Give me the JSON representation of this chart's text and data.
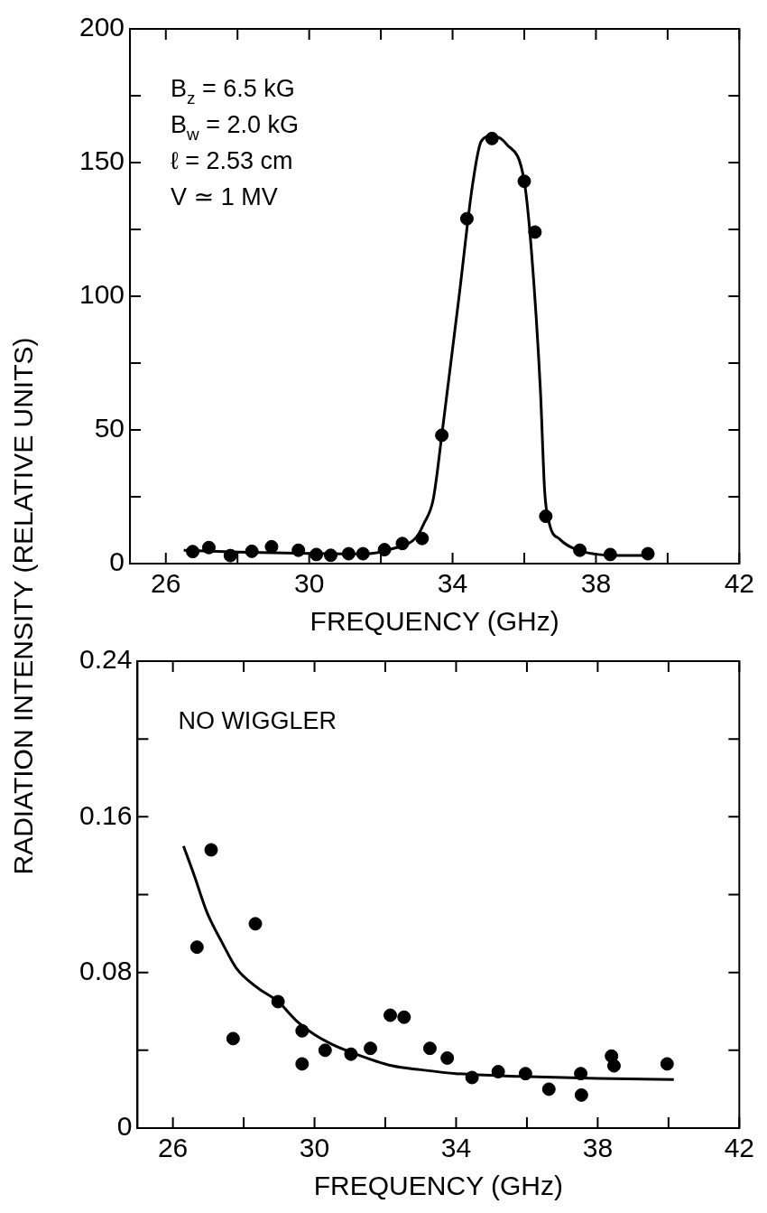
{
  "chart_data": [
    {
      "type": "scatter",
      "xlabel": "FREQUENCY (GHz)",
      "ylabel": "RADIATION INTENSITY (RELATIVE UNITS)",
      "annotations": [
        "B$_{z}$ = 6.5 kG",
        "B$_{w}$ = 2.0 kG",
        "ℓ = 2.53 cm",
        "V ≃ 1 MV"
      ],
      "xlim": [
        25,
        42
      ],
      "xticks": [
        26,
        {
          "value": 28,
          "label": null
        },
        30,
        {
          "value": 32,
          "label": null
        },
        34,
        {
          "value": 36,
          "label": null
        },
        38,
        {
          "value": 40,
          "label": null
        },
        42
      ],
      "ylim": [
        0,
        200
      ],
      "yticks": [
        0,
        {
          "value": 25,
          "label": null
        },
        50,
        {
          "value": 75,
          "label": null
        },
        100,
        {
          "value": 125,
          "label": null
        },
        150,
        {
          "value": 175,
          "label": null
        },
        200
      ],
      "grid": false,
      "legend": false,
      "series": [
        {
          "type": "scatter",
          "color": "#000000",
          "marker": "circle",
          "x": [
            26.75,
            27.2,
            27.8,
            28.4,
            28.95,
            29.7,
            30.2,
            30.6,
            31.1,
            31.5,
            32.1,
            32.6,
            33.15,
            33.7,
            34.4,
            35.1,
            36.0,
            36.3,
            36.6,
            37.55,
            38.4,
            39.45
          ],
          "values": [
            4.5,
            6,
            3,
            4.6,
            6.3,
            5,
            3.4,
            3.1,
            3.7,
            3.7,
            5.2,
            7.5,
            9.4,
            48,
            129,
            159,
            143,
            124,
            17.7,
            5,
            3.4,
            3.7
          ]
        },
        {
          "type": "line",
          "color": "#000000",
          "marker": "none",
          "x": [
            26.5,
            28,
            30,
            31.5,
            32.3,
            33,
            33.2,
            33.46,
            33.7,
            34.2,
            34.55,
            34.8,
            35.1,
            35.5,
            36.0,
            36.2,
            36.45,
            36.57,
            36.7,
            37,
            37.5,
            38,
            38.5,
            39.5
          ],
          "values": [
            5,
            4.3,
            3.8,
            3.6,
            5.5,
            10,
            15,
            24,
            48,
            102,
            141,
            158,
            160,
            157,
            143,
            117,
            65,
            27,
            15,
            9,
            5,
            3.5,
            3,
            3
          ]
        }
      ]
    },
    {
      "type": "scatter",
      "xlabel": "FREQUENCY (GHz)",
      "annotations": [
        "NO WIGGLER"
      ],
      "xlim": [
        25,
        42
      ],
      "xticks": [
        26,
        {
          "value": 28,
          "label": null
        },
        30,
        {
          "value": 32,
          "label": null
        },
        34,
        {
          "value": 36,
          "label": null
        },
        38,
        {
          "value": 40,
          "label": null
        },
        42
      ],
      "ylim": [
        0,
        0.24
      ],
      "yticks": [
        0,
        {
          "value": 0.04,
          "label": null
        },
        0.08,
        {
          "value": 0.12,
          "label": null
        },
        0.16,
        {
          "value": 0.2,
          "label": null
        },
        0.24
      ],
      "grid": false,
      "legend": false,
      "series": [
        {
          "type": "scatter",
          "color": "#000000",
          "marker": "circle",
          "x": [
            26.68,
            27.08,
            27.7,
            28.33,
            28.97,
            29.65,
            29.65,
            30.3,
            31.03,
            31.58,
            32.14,
            32.53,
            33.26,
            33.75,
            34.45,
            35.19,
            35.96,
            36.62,
            37.52,
            37.54,
            38.39,
            38.46,
            39.96
          ],
          "values": [
            0.093,
            0.143,
            0.046,
            0.105,
            0.065,
            0.05,
            0.033,
            0.04,
            0.038,
            0.041,
            0.058,
            0.057,
            0.041,
            0.036,
            0.026,
            0.029,
            0.028,
            0.02,
            0.028,
            0.017,
            0.037,
            0.032,
            0.033
          ]
        },
        {
          "type": "line",
          "color": "#000000",
          "marker": "none",
          "x": [
            26.3,
            26.6,
            26.96,
            27.4,
            27.8,
            28.4,
            28.97,
            29.5,
            30,
            30.5,
            31.03,
            32.2,
            33,
            34,
            35.8,
            38,
            40.15
          ],
          "values": [
            0.145,
            0.13,
            0.111,
            0.095,
            0.082,
            0.072,
            0.065,
            0.055,
            0.048,
            0.043,
            0.039,
            0.032,
            0.03,
            0.028,
            0.0266,
            0.0255,
            0.025
          ]
        }
      ]
    }
  ]
}
